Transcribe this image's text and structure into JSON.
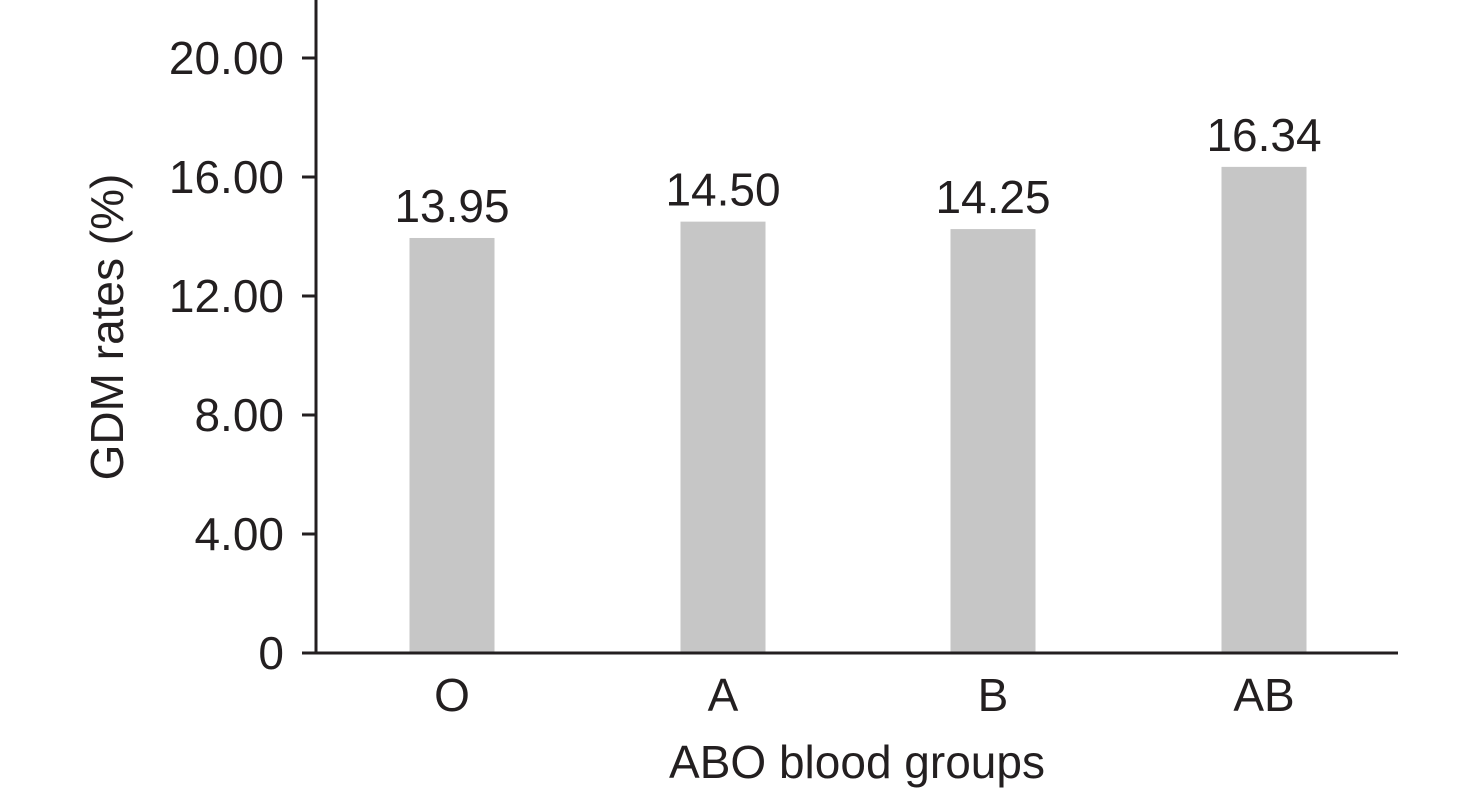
{
  "chart_data": {
    "type": "bar",
    "categories": [
      "O",
      "A",
      "B",
      "AB"
    ],
    "values": [
      13.95,
      14.5,
      14.25,
      16.34
    ],
    "value_labels": [
      "13.95",
      "14.50",
      "14.25",
      "16.34"
    ],
    "xlabel": "ABO blood groups",
    "ylabel": "GDM rates (%)",
    "ylim": [
      0,
      22
    ],
    "yticks": [
      0,
      4,
      8,
      12,
      16,
      20
    ],
    "ytick_labels": [
      "0",
      "4.00",
      "8.00",
      "12.00",
      "16.00",
      "20.00"
    ],
    "grid": false,
    "legend": "none",
    "bar_color": "#c6c6c6",
    "axis_color": "#231f20"
  }
}
